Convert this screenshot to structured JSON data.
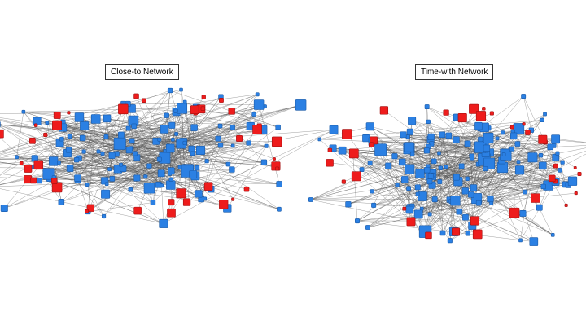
{
  "networks": [
    {
      "title": "Close-to Network"
    },
    {
      "title": "Time-with Network"
    }
  ]
}
